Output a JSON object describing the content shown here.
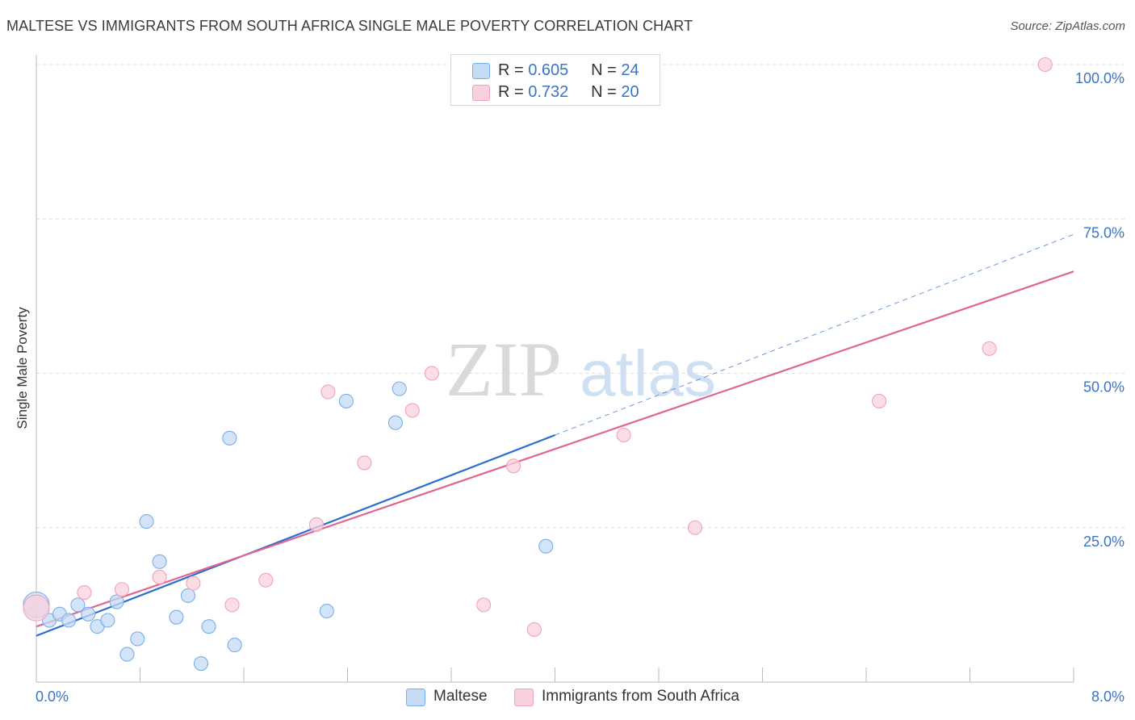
{
  "header": {
    "title": "MALTESE VS IMMIGRANTS FROM SOUTH AFRICA SINGLE MALE POVERTY CORRELATION CHART",
    "source": "Source: ZipAtlas.com"
  },
  "stats_legend": {
    "rows": [
      {
        "r_label": "R =",
        "r_value": "0.605",
        "n_label": "N =",
        "n_value": "24"
      },
      {
        "r_label": "R =",
        "r_value": "0.732",
        "n_label": "N =",
        "n_value": "20"
      }
    ]
  },
  "watermark": {
    "part1": "ZIP",
    "part2": "atlas"
  },
  "chart_data": {
    "type": "scatter",
    "title": "MALTESE VS IMMIGRANTS FROM SOUTH AFRICA SINGLE MALE POVERTY CORRELATION CHART",
    "xlabel": "",
    "ylabel": "Single Male Poverty",
    "xlim": [
      0,
      8
    ],
    "ylim": [
      0,
      100
    ],
    "x_tick_labels": [
      "0.0%",
      "8.0%"
    ],
    "y_tick_values": [
      25,
      50,
      75,
      100
    ],
    "y_tick_labels": [
      "25.0%",
      "50.0%",
      "75.0%",
      "100.0%"
    ],
    "grid": true,
    "legend_position": "bottom",
    "series": [
      {
        "name": "Maltese",
        "color": "#7aaee8",
        "fill": "#c5dbf6",
        "line_color": "#2a6fd0",
        "r": 0.605,
        "n": 24,
        "trend": {
          "x0": 0.0,
          "y0": 7.5,
          "x1": 4.0,
          "y1": 40.0,
          "dashed_to_x": 8.0
        },
        "points": [
          {
            "x": 0.0,
            "y": 12.5,
            "big": true
          },
          {
            "x": 0.1,
            "y": 10.0
          },
          {
            "x": 0.18,
            "y": 11.0
          },
          {
            "x": 0.25,
            "y": 10.0
          },
          {
            "x": 0.32,
            "y": 12.5
          },
          {
            "x": 0.4,
            "y": 11.0
          },
          {
            "x": 0.47,
            "y": 9.0
          },
          {
            "x": 0.55,
            "y": 10.0
          },
          {
            "x": 0.62,
            "y": 13.0
          },
          {
            "x": 0.7,
            "y": 4.5
          },
          {
            "x": 0.78,
            "y": 7.0
          },
          {
            "x": 0.85,
            "y": 26.0
          },
          {
            "x": 0.95,
            "y": 19.5
          },
          {
            "x": 1.08,
            "y": 10.5
          },
          {
            "x": 1.17,
            "y": 14.0
          },
          {
            "x": 1.27,
            "y": 3.0
          },
          {
            "x": 1.33,
            "y": 9.0
          },
          {
            "x": 1.49,
            "y": 39.5
          },
          {
            "x": 1.53,
            "y": 6.0
          },
          {
            "x": 2.24,
            "y": 11.5
          },
          {
            "x": 2.39,
            "y": 45.5
          },
          {
            "x": 2.77,
            "y": 42.0
          },
          {
            "x": 2.8,
            "y": 47.5
          },
          {
            "x": 3.93,
            "y": 22.0
          }
        ]
      },
      {
        "name": "Immigrants from South Africa",
        "color": "#f0a3bb",
        "fill": "#f9d1de",
        "line_color": "#e06592",
        "r": 0.732,
        "n": 20,
        "trend": {
          "x0": 0.0,
          "y0": 9.0,
          "x1": 8.0,
          "y1": 66.5
        },
        "points": [
          {
            "x": 0.0,
            "y": 12.0,
            "big": true
          },
          {
            "x": 0.37,
            "y": 14.5
          },
          {
            "x": 0.66,
            "y": 15.0
          },
          {
            "x": 0.95,
            "y": 17.0
          },
          {
            "x": 1.21,
            "y": 16.0
          },
          {
            "x": 1.51,
            "y": 12.5
          },
          {
            "x": 1.77,
            "y": 16.5
          },
          {
            "x": 2.16,
            "y": 25.5
          },
          {
            "x": 2.25,
            "y": 47.0
          },
          {
            "x": 2.53,
            "y": 35.5
          },
          {
            "x": 2.9,
            "y": 44.0
          },
          {
            "x": 3.05,
            "y": 50.0
          },
          {
            "x": 3.45,
            "y": 12.5
          },
          {
            "x": 3.68,
            "y": 35.0
          },
          {
            "x": 3.84,
            "y": 8.5
          },
          {
            "x": 4.53,
            "y": 40.0
          },
          {
            "x": 5.08,
            "y": 25.0
          },
          {
            "x": 6.5,
            "y": 45.5
          },
          {
            "x": 7.35,
            "y": 54.0
          },
          {
            "x": 7.78,
            "y": 100.0
          }
        ]
      }
    ]
  }
}
